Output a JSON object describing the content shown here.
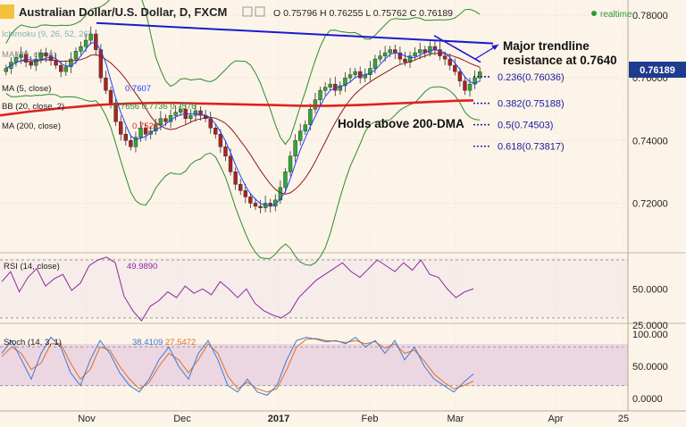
{
  "header": {
    "title": "Australian Dollar/U.S. Dollar, D, FXCM",
    "ohlc_text": "O 0.75796  H 0.76255  L 0.75762  C 0.76189",
    "realtime": "realtime",
    "last_price": "0.76189"
  },
  "legend": {
    "ichimoku": "Ichimoku (9, 26, 52, 26)",
    "ma20": "MA (20, close)",
    "ma": "MA (5, close)",
    "ma_val": "0.7607",
    "bb": "BB (20, close, 2)",
    "bb_val": "0.7656  0.7736  0.7576",
    "ma200": "MA (200, close)",
    "ma200_val": "0.7528"
  },
  "annotations": {
    "resistance_line1": "Major trendline",
    "resistance_line2": "resistance at 0.7640",
    "dma": "Holds above 200-DMA"
  },
  "fib": [
    {
      "label": "0.236(0.76036)",
      "value": 0.76036
    },
    {
      "label": "0.382(0.75188)",
      "value": 0.75188
    },
    {
      "label": "0.5(0.74503)",
      "value": 0.74503
    },
    {
      "label": "0.618(0.73817)",
      "value": 0.73817
    }
  ],
  "rsi": {
    "title": "RSI (14, close)",
    "value": "49.9890"
  },
  "stoch": {
    "title": "Stoch (14, 3, 1)",
    "k": "38.4109",
    "d": "27.5472"
  },
  "colors": {
    "trendline": "#1a1ad0",
    "ma200": "#e02020",
    "ma20": "#8b1a1a",
    "ma5": "#2040ff",
    "bb": "#2e8b2e",
    "up": "#2faa2f",
    "down": "#b02020",
    "rsi": "#8a2a9a",
    "stoch_k": "#3a7bd5",
    "stoch_d": "#e07020",
    "fib": "#1a1aa0"
  },
  "chart_data": {
    "type": "line",
    "symbol": "AUDUSD",
    "timeframe": "D",
    "x_ticks": [
      "Nov",
      "Dec",
      "2017",
      "Feb",
      "Mar",
      "Apr",
      "25"
    ],
    "price_ticks": [
      "0.78000",
      "0.76000",
      "0.74000",
      "0.72000"
    ],
    "ylim": [
      0.705,
      0.782
    ],
    "close": [
      0.763,
      0.765,
      0.7665,
      0.7675,
      0.765,
      0.764,
      0.766,
      0.768,
      0.767,
      0.7655,
      0.764,
      0.762,
      0.7635,
      0.766,
      0.7685,
      0.77,
      0.772,
      0.774,
      0.769,
      0.76,
      0.756,
      0.752,
      0.746,
      0.742,
      0.74,
      0.738,
      0.741,
      0.744,
      0.742,
      0.743,
      0.745,
      0.747,
      0.746,
      0.748,
      0.749,
      0.75,
      0.747,
      0.748,
      0.7495,
      0.748,
      0.747,
      0.744,
      0.742,
      0.738,
      0.735,
      0.73,
      0.726,
      0.724,
      0.722,
      0.72,
      0.719,
      0.7185,
      0.72,
      0.719,
      0.721,
      0.725,
      0.73,
      0.735,
      0.74,
      0.743,
      0.745,
      0.75,
      0.753,
      0.756,
      0.757,
      0.758,
      0.756,
      0.7575,
      0.76,
      0.761,
      0.762,
      0.76,
      0.761,
      0.763,
      0.766,
      0.767,
      0.768,
      0.769,
      0.768,
      0.766,
      0.765,
      0.767,
      0.768,
      0.769,
      0.768,
      0.77,
      0.769,
      0.767,
      0.766,
      0.764,
      0.762,
      0.759,
      0.756,
      0.758,
      0.76,
      0.7619
    ],
    "series": [
      {
        "name": "MA (200, close)",
        "values": [
          0.748,
          0.7486,
          0.7492,
          0.7497,
          0.7502,
          0.7506,
          0.751,
          0.7514,
          0.7516,
          0.7518,
          0.7519,
          0.752,
          0.752,
          0.7519,
          0.7518,
          0.7517,
          0.7516,
          0.7515,
          0.7514,
          0.7513,
          0.7512,
          0.7511,
          0.7511,
          0.7511,
          0.7512,
          0.7513,
          0.7515,
          0.7517,
          0.7519,
          0.7521,
          0.7523,
          0.7525,
          0.7527,
          0.7528
        ]
      },
      {
        "name": "RSI (14, close)",
        "values": [
          55,
          62,
          48,
          58,
          64,
          52,
          57,
          60,
          49,
          54,
          66,
          70,
          72,
          68,
          45,
          35,
          28,
          38,
          42,
          48,
          44,
          52,
          47,
          50,
          46,
          55,
          50,
          44,
          50,
          40,
          35,
          32,
          30,
          34,
          44,
          50,
          56,
          60,
          64,
          68,
          62,
          58,
          64,
          70,
          66,
          62,
          68,
          63,
          70,
          60,
          58,
          50,
          44,
          48,
          50
        ]
      },
      {
        "name": "Stoch K",
        "values": [
          70,
          90,
          60,
          30,
          70,
          95,
          80,
          40,
          20,
          60,
          90,
          70,
          40,
          20,
          10,
          30,
          60,
          80,
          50,
          30,
          70,
          90,
          60,
          20,
          10,
          30,
          10,
          5,
          20,
          60,
          90,
          95,
          92,
          88,
          90,
          85,
          95,
          80,
          90,
          70,
          90,
          60,
          80,
          50,
          30,
          20,
          10,
          25,
          38
        ]
      },
      {
        "name": "Stoch D",
        "values": [
          65,
          80,
          70,
          45,
          55,
          85,
          85,
          55,
          30,
          45,
          80,
          75,
          50,
          30,
          15,
          25,
          50,
          70,
          60,
          40,
          60,
          85,
          70,
          35,
          15,
          25,
          15,
          10,
          15,
          45,
          80,
          92,
          93,
          90,
          89,
          87,
          90,
          85,
          88,
          78,
          85,
          70,
          75,
          58,
          38,
          25,
          15,
          20,
          27
        ]
      }
    ]
  }
}
